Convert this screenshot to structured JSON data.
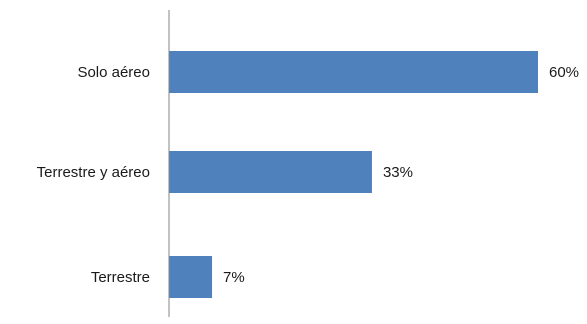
{
  "chart_data": {
    "type": "bar",
    "orientation": "horizontal",
    "categories": [
      "Solo aéreo",
      "Terrestre y aéreo",
      "Terrestre"
    ],
    "values": [
      60,
      33,
      7
    ],
    "data_labels": [
      "60%",
      "33%",
      "7%"
    ],
    "unit": "%",
    "xlim": [
      0,
      60
    ],
    "title": "",
    "xlabel": "",
    "ylabel": "",
    "grid": false,
    "legend": "none",
    "bar_color": "#4f81bd",
    "axis_color": "#868686"
  }
}
